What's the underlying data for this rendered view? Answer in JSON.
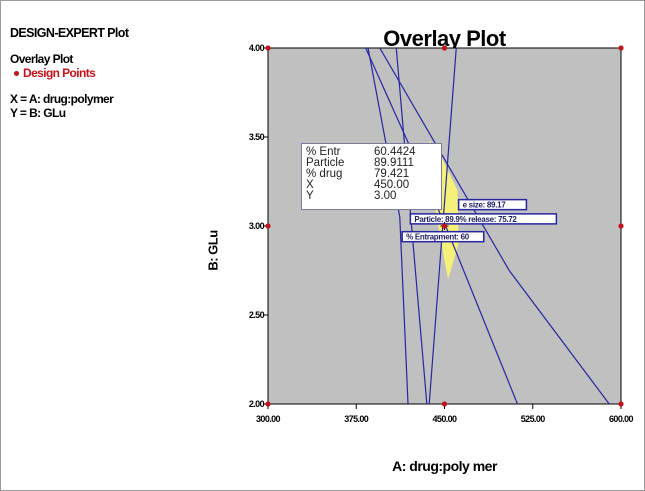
{
  "sidebar": {
    "header": "DESIGN-EXPERT Plot",
    "plot_name": "Overlay Plot",
    "legend": "Design Points",
    "x_factor": "X = A: drug:polymer",
    "y_factor": "Y = B: GLu"
  },
  "colors": {
    "plot_bg": "#c0c0c0",
    "feasible": "#f5f07a",
    "contour": "#2626a0",
    "design_point": "#c0131a",
    "flag_border": "#2626a0"
  },
  "tooltip": {
    "rows": [
      {
        "label": "% Entr",
        "value": "60.4424"
      },
      {
        "label": "Particle",
        "value": "89.9111"
      },
      {
        "label": "% drug",
        "value": "79.421"
      },
      {
        "label": "X",
        "value": "450.00"
      },
      {
        "label": "Y",
        "value": "3.00"
      }
    ]
  },
  "chart_data": {
    "type": "overlay-contour",
    "title": "Overlay Plot",
    "xlabel": "A: drug:poly mer",
    "ylabel": "B: GLu",
    "xlim": [
      300,
      600
    ],
    "ylim": [
      2,
      4
    ],
    "x_ticks": [
      {
        "value": 300,
        "label": "300.00"
      },
      {
        "value": 375,
        "label": "375.00"
      },
      {
        "value": 450,
        "label": "450.00"
      },
      {
        "value": 525,
        "label": "525.00"
      },
      {
        "value": 600,
        "label": "600.00"
      }
    ],
    "y_ticks": [
      {
        "value": 2.0,
        "label": "2.00"
      },
      {
        "value": 2.5,
        "label": "2.50"
      },
      {
        "value": 3.0,
        "label": "3.00"
      },
      {
        "value": 3.5,
        "label": "3.50"
      },
      {
        "value": 4.0,
        "label": "4.00"
      }
    ],
    "design_points": [
      {
        "x": 300,
        "y": 4.0
      },
      {
        "x": 450,
        "y": 4.0
      },
      {
        "x": 600,
        "y": 4.0
      },
      {
        "x": 300,
        "y": 3.0
      },
      {
        "x": 450,
        "y": 3.0
      },
      {
        "x": 600,
        "y": 3.0
      },
      {
        "x": 300,
        "y": 2.0
      },
      {
        "x": 450,
        "y": 2.0
      },
      {
        "x": 600,
        "y": 2.0
      }
    ],
    "contours": [
      {
        "points": [
          [
            385,
            4.0
          ],
          [
            412,
            3.05
          ],
          [
            419,
            2.0
          ]
        ]
      },
      {
        "points": [
          [
            409,
            4.0
          ],
          [
            435,
            2.0
          ]
        ]
      },
      {
        "points": [
          [
            460,
            4.0
          ],
          [
            437,
            2.0
          ]
        ]
      },
      {
        "points": [
          [
            383,
            4.0
          ],
          [
            451,
            3.0
          ],
          [
            512,
            2.0
          ]
        ]
      },
      {
        "points": [
          [
            395,
            4.0
          ],
          [
            505,
            2.75
          ],
          [
            590,
            2.0
          ]
        ]
      }
    ],
    "feasible_region": [
      [
        437,
        3.48
      ],
      [
        448,
        3.38
      ],
      [
        461,
        3.2
      ],
      [
        462,
        2.9
      ],
      [
        453,
        2.7
      ],
      [
        446,
        2.95
      ],
      [
        437,
        3.3
      ]
    ],
    "flags": [
      {
        "x": 462,
        "y": 3.12,
        "text": "e size: 89.17"
      },
      {
        "x": 421,
        "y": 3.04,
        "text": "Particle: 89.9% release: 75.72"
      },
      {
        "x": 414,
        "y": 2.94,
        "text": "% Entrapment: 60"
      }
    ],
    "selected_point": {
      "x": 450,
      "y": 3.0
    }
  }
}
